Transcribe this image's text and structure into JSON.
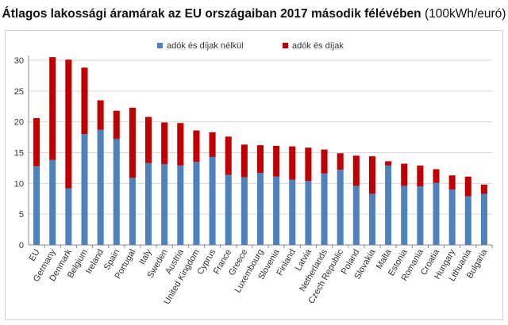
{
  "title": "Átlagos lakossági áramárak az EU országaiban 2017 második félévében",
  "unit": "(100kWh/euró)",
  "colors": {
    "base": "#4f81bd",
    "tax": "#c00000",
    "grid": "#d9d9d9",
    "axis": "#888888",
    "text": "#333333"
  },
  "chart_data": {
    "type": "bar",
    "stacked": true,
    "title": "Átlagos lakossági áramárak az EU országaiban 2017 második félévében (100kWh/euró)",
    "xlabel": "",
    "ylabel": "",
    "ylim": [
      0,
      30
    ],
    "yticks": [
      0,
      5,
      10,
      15,
      20,
      25,
      30
    ],
    "grid": true,
    "legend": "top-center",
    "categories": [
      "EU",
      "Germany",
      "Denmark",
      "Belgium",
      "Ireland",
      "Spain",
      "Portugal",
      "Italy",
      "Sweden",
      "Austria",
      "United Kingdom",
      "Cyprus",
      "France",
      "Greece",
      "Luxembourg",
      "Slovenia",
      "Finland",
      "Latvia",
      "Netherlands",
      "Czech Republic",
      "Poland",
      "Slovakia",
      "Malta",
      "Estonia",
      "Romania",
      "Croatia",
      "Hungary",
      "Lithuania",
      "Bulgaria"
    ],
    "series": [
      {
        "name": "adók és díjak nélkül",
        "color": "#4f81bd",
        "values": [
          12.8,
          13.8,
          9.2,
          18.0,
          18.7,
          17.2,
          10.9,
          13.3,
          13.1,
          12.9,
          13.5,
          14.3,
          11.4,
          11.0,
          11.7,
          11.1,
          10.6,
          10.4,
          11.6,
          12.2,
          9.6,
          8.3,
          12.9,
          9.6,
          9.5,
          10.1,
          9.0,
          7.9,
          8.3
        ]
      },
      {
        "name": "adók és díjak",
        "color": "#c00000",
        "values": [
          7.8,
          16.7,
          20.9,
          10.8,
          4.8,
          4.6,
          11.4,
          7.5,
          6.8,
          6.9,
          5.1,
          4.0,
          6.2,
          5.3,
          4.5,
          5.0,
          5.4,
          5.4,
          3.9,
          2.7,
          4.9,
          6.1,
          0.7,
          3.6,
          3.4,
          2.2,
          2.3,
          3.2,
          1.5
        ]
      }
    ]
  }
}
